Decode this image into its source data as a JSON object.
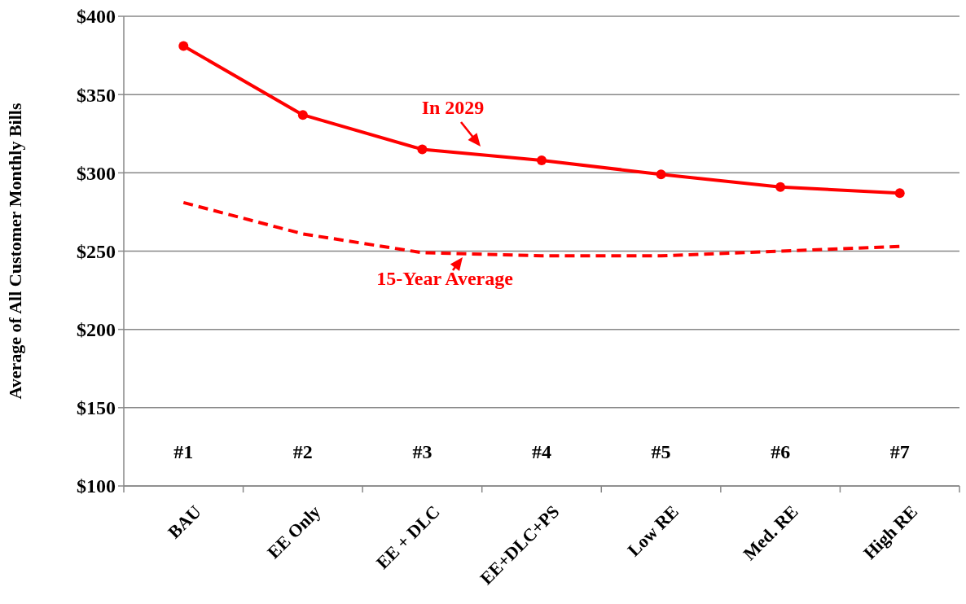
{
  "chart_data": {
    "type": "line",
    "ylabel": "Average of All Customer Monthly Bills",
    "categories": [
      "BAU",
      "EE Only",
      "EE + DLC",
      "EE+DLC+PS",
      "Low RE",
      "Med. RE",
      "High RE"
    ],
    "series": [
      {
        "name": "In 2029",
        "color": "#ff0000",
        "marker": "circle",
        "line_style": "solid",
        "values": [
          381,
          337,
          315,
          308,
          299,
          291,
          287
        ]
      },
      {
        "name": "15-Year Average",
        "color": "#ff0000",
        "marker": "none",
        "line_style": "dashed",
        "values": [
          281,
          261,
          249,
          247,
          247,
          250,
          253
        ]
      }
    ],
    "ylim": [
      100,
      400
    ],
    "yticks": [
      {
        "value": 100,
        "label": "$100"
      },
      {
        "value": 150,
        "label": "$150"
      },
      {
        "value": 200,
        "label": "$200"
      },
      {
        "value": 250,
        "label": "$250"
      },
      {
        "value": 300,
        "label": "$300"
      },
      {
        "value": 350,
        "label": "$350"
      },
      {
        "value": 400,
        "label": "$400"
      }
    ],
    "grid": "y",
    "annotations": [
      "#1",
      "#2",
      "#3",
      "#4",
      "#5",
      "#6",
      "#7"
    ]
  }
}
